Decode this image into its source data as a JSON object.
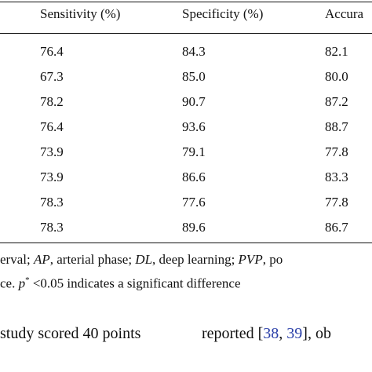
{
  "table": {
    "headers": [
      "Sensitivity (%)",
      "Specificity (%)",
      "Accura"
    ],
    "rows": [
      [
        "76.4",
        "84.3",
        "82.1"
      ],
      [
        "67.3",
        "85.0",
        "80.0"
      ],
      [
        "78.2",
        "90.7",
        "87.2"
      ],
      [
        "76.4",
        "93.6",
        "88.7"
      ],
      [
        "73.9",
        "79.1",
        "77.8"
      ],
      [
        "73.9",
        "86.6",
        "83.3"
      ],
      [
        "78.3",
        "77.6",
        "77.8"
      ],
      [
        "78.3",
        "89.6",
        "86.7"
      ]
    ]
  },
  "footnote": {
    "line1_a": "erval; ",
    "line1_ap": "AP",
    "line1_b": ", arterial phase; ",
    "line1_dl": "DL",
    "line1_c": ", deep learning; ",
    "line1_pvp": "PVP",
    "line1_d": ", po",
    "line2_a": "ce. ",
    "line2_p": "p",
    "line2_sup": "*",
    "line2_b": " <0.05 indicates a significant difference"
  },
  "body": {
    "left_text": "study scored 40 points",
    "right_a": "reported [",
    "cite1": "38",
    "right_b": ", ",
    "cite2": "39",
    "right_c": "], ob"
  }
}
